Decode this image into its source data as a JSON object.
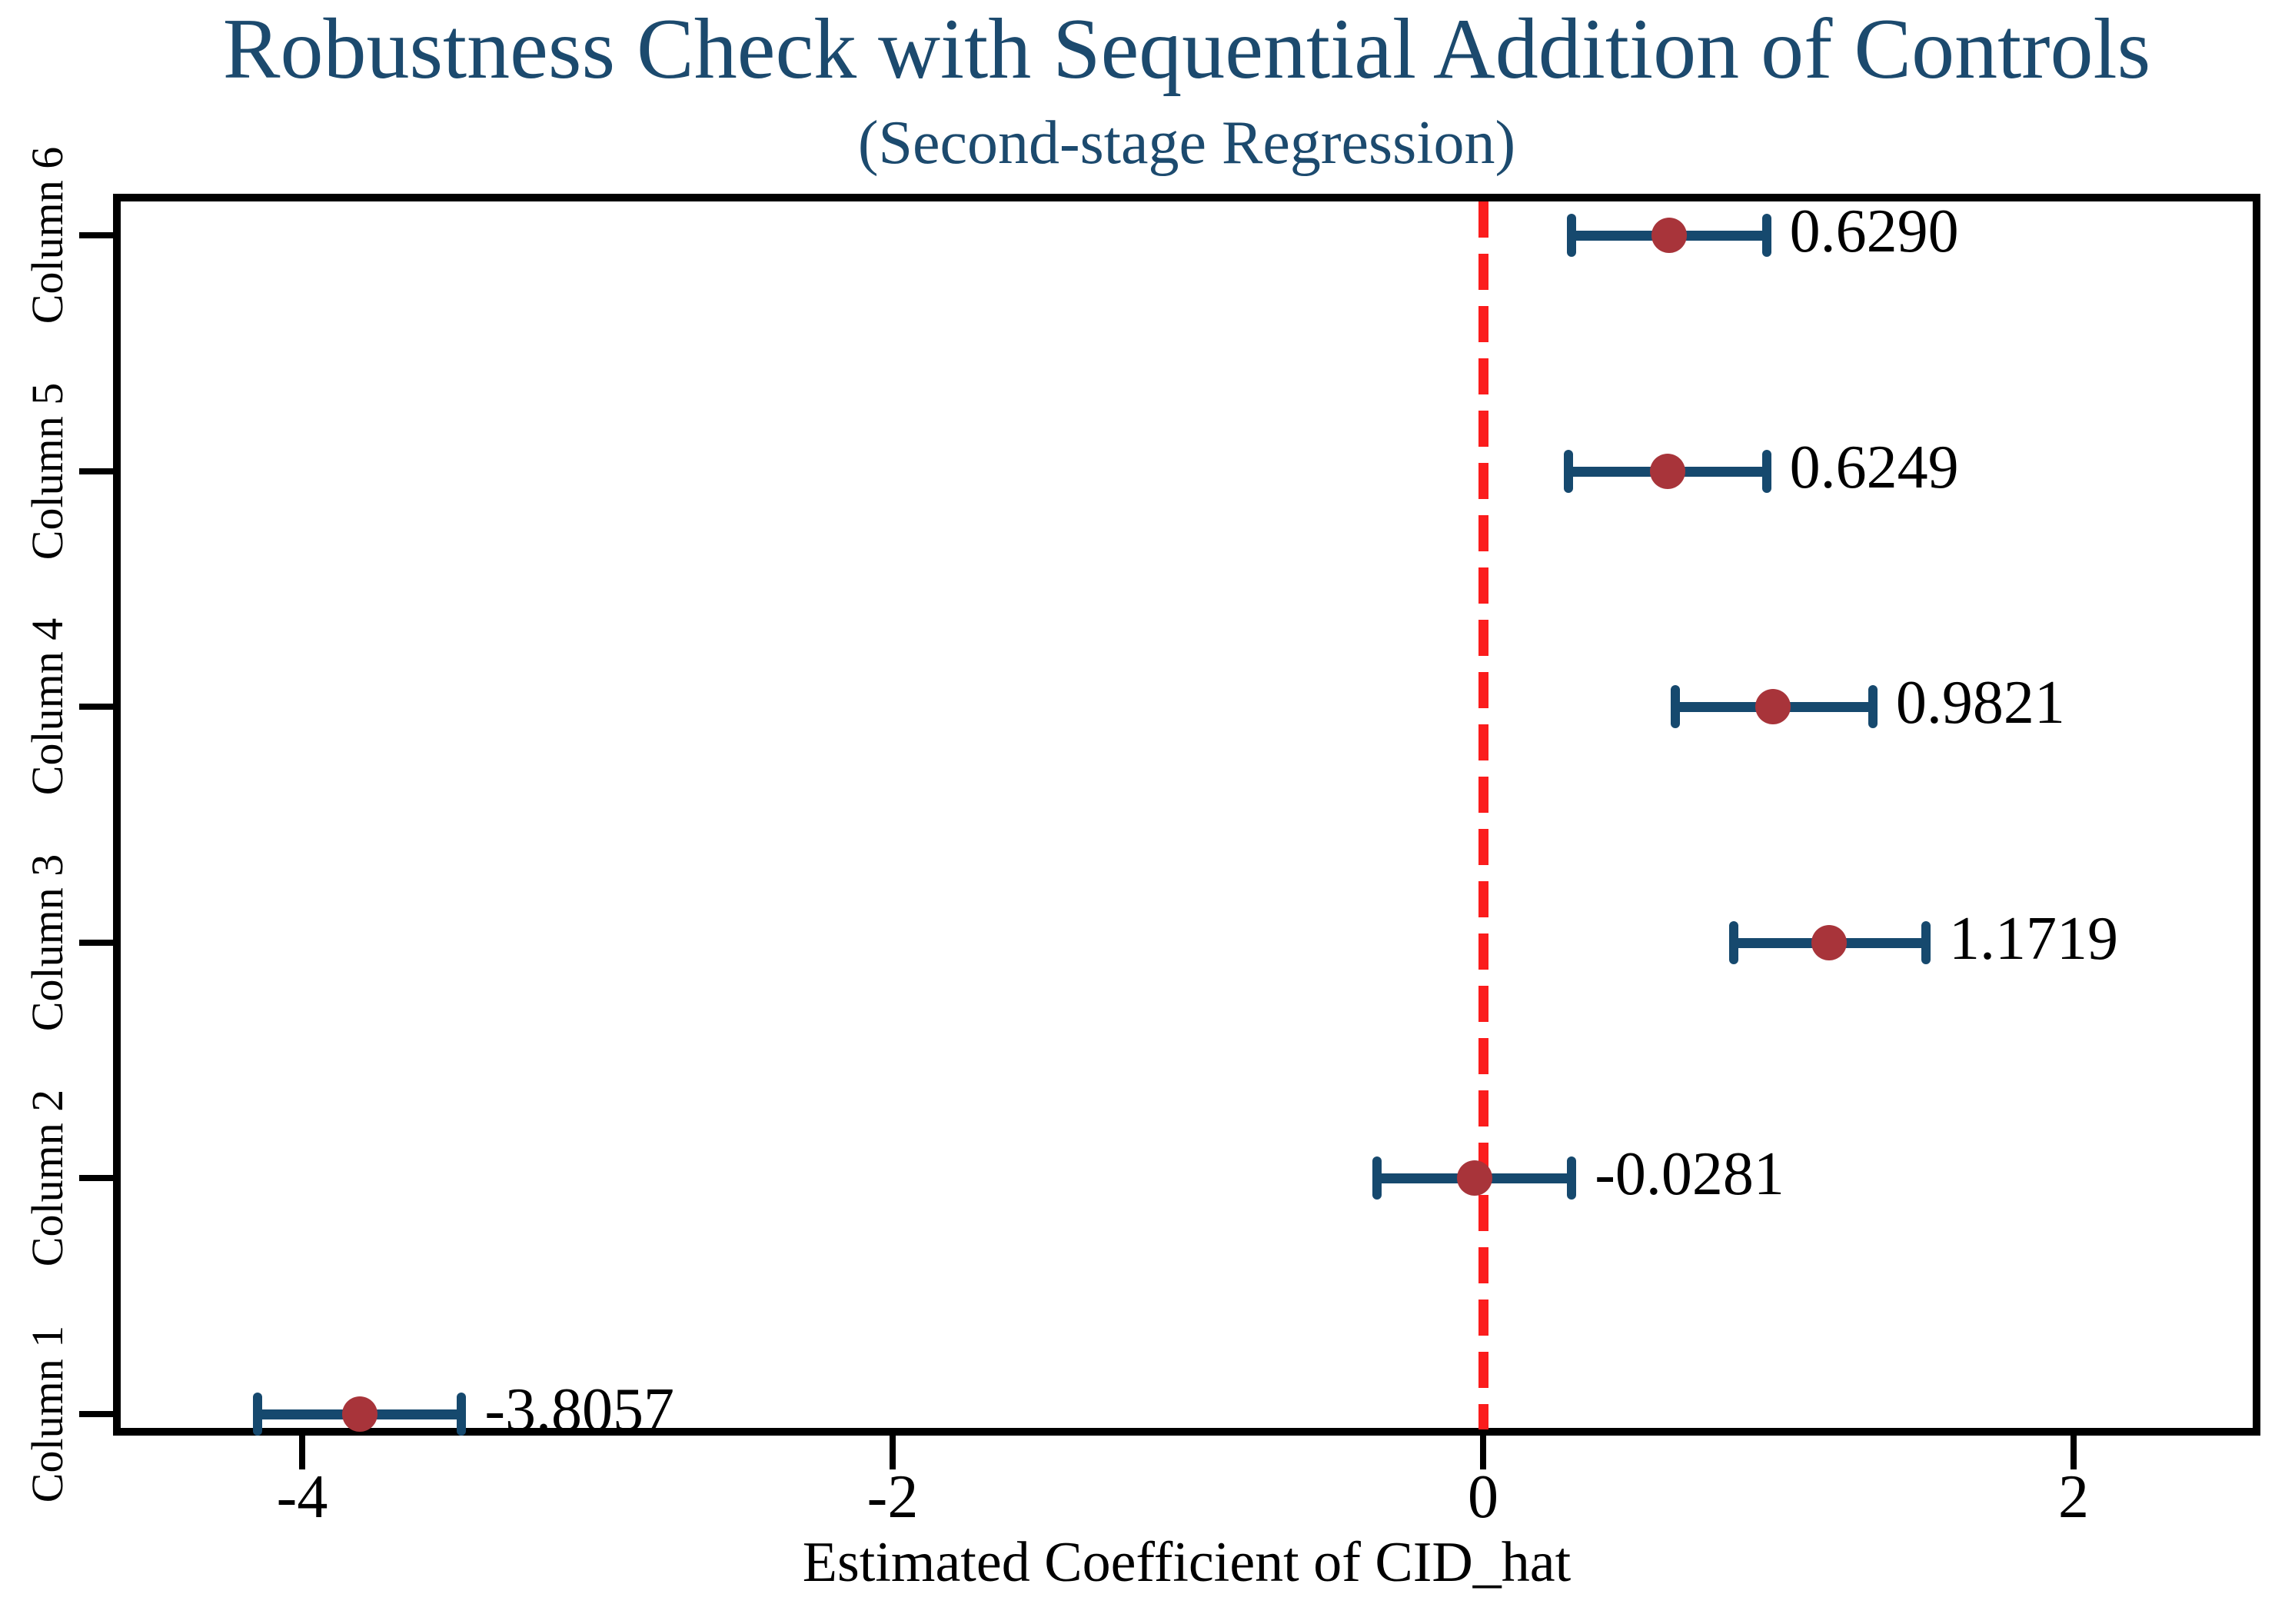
{
  "chart_data": {
    "type": "scatter",
    "variant": "horizontal-coefficient-plot-with-confidence-intervals",
    "title": "Robustness Check with Sequential Addition of Controls",
    "subtitle": "(Second-stage Regression)",
    "xlabel": "Estimated Coefficient of CID_hat",
    "ylabel": "",
    "x_ticks": [
      -4,
      -2,
      0,
      2
    ],
    "x_tick_labels": [
      "-4",
      "-2",
      "0",
      "2"
    ],
    "xlim": [
      -4.63,
      2.62
    ],
    "grid": false,
    "legend": null,
    "zero_line": {
      "x": 0,
      "style": "dashed",
      "color": "#fb1d1d"
    },
    "rows": [
      {
        "category": "Column 6",
        "estimate": 0.629,
        "value_label": "0.6290",
        "ci_low": 0.3,
        "ci_high": 0.96
      },
      {
        "category": "Column 5",
        "estimate": 0.6249,
        "value_label": "0.6249",
        "ci_low": 0.29,
        "ci_high": 0.96
      },
      {
        "category": "Column 4",
        "estimate": 0.9821,
        "value_label": "0.9821",
        "ci_low": 0.65,
        "ci_high": 1.32
      },
      {
        "category": "Column 3",
        "estimate": 1.1719,
        "value_label": "1.1719",
        "ci_low": 0.85,
        "ci_high": 1.5
      },
      {
        "category": "Column 2",
        "estimate": -0.0281,
        "value_label": "-0.0281",
        "ci_low": -0.36,
        "ci_high": 0.3
      },
      {
        "category": "Column 1",
        "estimate": -3.8057,
        "value_label": "-3.8057",
        "ci_low": -4.15,
        "ci_high": -3.46
      }
    ],
    "colors": {
      "title": "#1c4a6e",
      "marker": "#a8343a",
      "ci_bar": "#16496e",
      "zero_line": "#fb1d1d",
      "axis": "#000000",
      "background": "#ffffff"
    }
  }
}
